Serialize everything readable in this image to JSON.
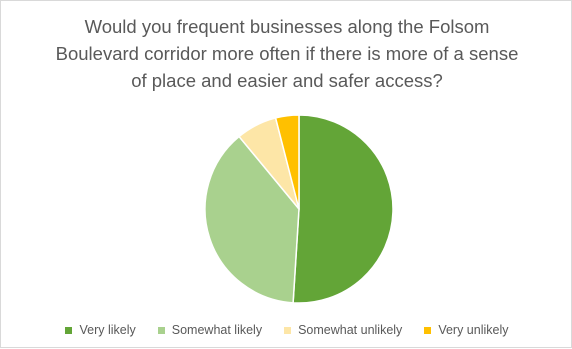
{
  "chart_data": {
    "type": "pie",
    "title_lines": [
      "Would you frequent businesses along the Folsom",
      "Boulevard corridor more often if there is more of a sense",
      "of place and easier and safer access?"
    ],
    "categories": [
      "Very likely",
      "Somewhat likely",
      "Somewhat unlikely",
      "Very unlikely"
    ],
    "values": [
      51,
      38,
      7,
      4
    ],
    "unit": "%",
    "colors": [
      "#63a537",
      "#a9d18e",
      "#fde6a7",
      "#ffc000"
    ],
    "legend_position": "bottom",
    "start_angle": "12 o'clock",
    "direction": "clockwise"
  }
}
